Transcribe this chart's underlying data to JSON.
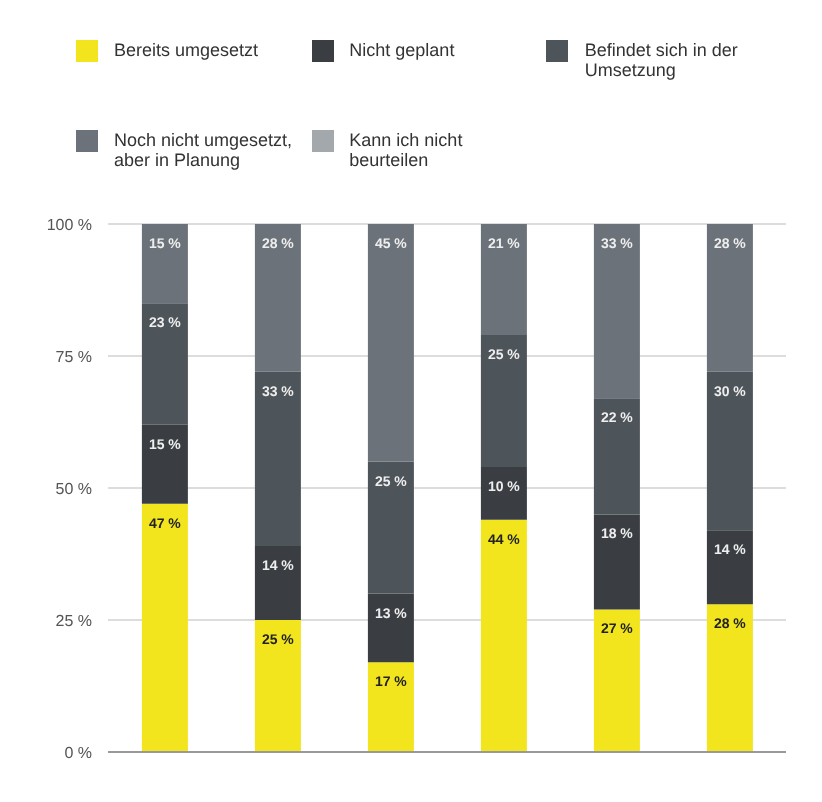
{
  "chart_data": {
    "type": "bar",
    "stacked": true,
    "categories": [
      null,
      null,
      null,
      null,
      null,
      null
    ],
    "series": [
      {
        "name": "Bereits umgesetzt",
        "color": "#f2e51e",
        "values": [
          47,
          25,
          17,
          44,
          27,
          28
        ],
        "value_labels": [
          "47 %",
          "25 %",
          "17 %",
          "44 %",
          "27 %",
          "28 %"
        ]
      },
      {
        "name": "Nicht geplant",
        "color": "#3a3e42",
        "values": [
          15,
          14,
          13,
          10,
          18,
          14
        ],
        "value_labels": [
          "15 %",
          "14 %",
          "13 %",
          "10 %",
          "18 %",
          "14 %"
        ]
      },
      {
        "name": "Befindet sich in der Umsetzung",
        "color": "#4d545a",
        "values": [
          23,
          33,
          25,
          25,
          22,
          30
        ],
        "value_labels": [
          "23 %",
          "33 %",
          "25 %",
          "25 %",
          "22 %",
          "30 %"
        ]
      },
      {
        "name": "Noch nicht umgesetzt, aber in Planung",
        "color": "#6b7279",
        "values": [
          15,
          28,
          45,
          21,
          33,
          28
        ],
        "value_labels": [
          "15 %",
          "28 %",
          "45 %",
          "21 %",
          "33 %",
          "28 %"
        ]
      },
      {
        "name": "Kann ich nicht beurteilen",
        "color": "#a3a8ad",
        "values": [
          null,
          null,
          null,
          null,
          null,
          null
        ]
      }
    ],
    "ylim": [
      0,
      100
    ],
    "yticks": [
      {
        "value": 0,
        "label": "0 %"
      },
      {
        "value": 25,
        "label": "25 %"
      },
      {
        "value": 50,
        "label": "50 %"
      },
      {
        "value": 75,
        "label": "75 %"
      },
      {
        "value": 100,
        "label": "100 %"
      }
    ],
    "grid": "y",
    "legend": "top"
  }
}
